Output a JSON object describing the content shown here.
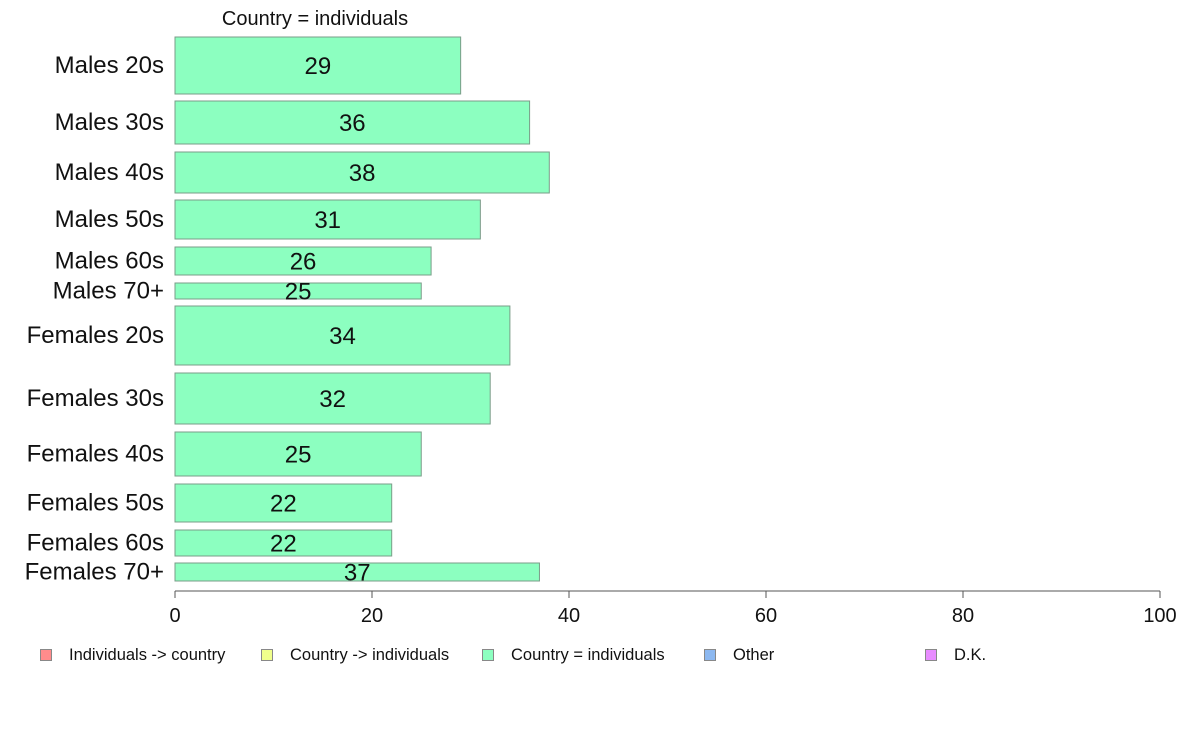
{
  "chart_data": {
    "type": "bar",
    "orientation": "horizontal",
    "title": "Country = individuals",
    "categories": [
      "Males 20s",
      "Males 30s",
      "Males 40s",
      "Males 50s",
      "Males 60s",
      "Males 70+",
      "Females 20s",
      "Females 30s",
      "Females 40s",
      "Females 50s",
      "Females 60s",
      "Females 70+"
    ],
    "values": [
      29,
      36,
      38,
      31,
      26,
      25,
      34,
      32,
      25,
      22,
      22,
      37
    ],
    "value_labels": [
      "29",
      "36",
      "38",
      "31",
      "26",
      "25",
      "34",
      "32",
      "25",
      "22",
      "22",
      "37"
    ],
    "bar_color": "#8cffc0",
    "xlim": [
      0,
      100
    ],
    "xticks": [
      0,
      20,
      40,
      60,
      80,
      100
    ],
    "xtick_labels": [
      "0",
      "20",
      "40",
      "60",
      "80",
      "100"
    ],
    "grid": false,
    "legend_position": "bottom",
    "legend": [
      {
        "label": "Individuals -> country",
        "color": "#ff8c8c"
      },
      {
        "label": "Country -> individuals",
        "color": "#f0ff8c"
      },
      {
        "label": "Country = individuals",
        "color": "#8cffc0"
      },
      {
        "label": "Other",
        "color": "#8cb8f0"
      },
      {
        "label": "D.K.",
        "color": "#e88cff"
      }
    ]
  }
}
